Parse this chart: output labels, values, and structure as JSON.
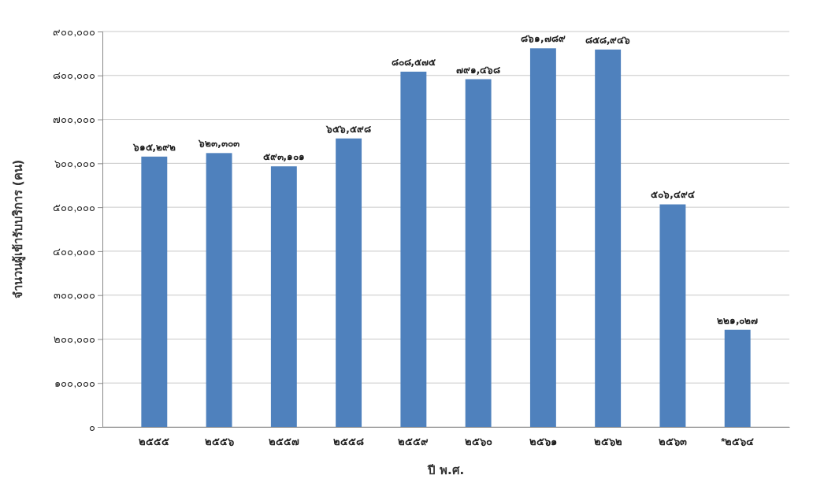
{
  "chart_data": {
    "type": "bar",
    "xlabel": "ปี พ.ศ.",
    "ylabel": "จำนวนผู้เข้ารับบริการ (คน)",
    "categories": [
      "๒๕๕๕",
      "๒๕๕๖",
      "๒๕๕๗",
      "๒๕๕๘",
      "๒๕๕๙",
      "๒๕๖๐",
      "๒๕๖๑",
      "๒๕๖๒",
      "๒๕๖๓",
      "*๒๕๖๔"
    ],
    "values": [
      615292,
      623303,
      593101,
      656598,
      808575,
      791468,
      861789,
      858946,
      506494,
      221027
    ],
    "value_labels": [
      "๖๑๕,๒๙๒",
      "๖๒๓,๓๐๓",
      "๕๙๓,๑๐๑",
      "๖๕๖,๕๙๘",
      "๘๐๘,๕๗๕",
      "๗๙๑,๔๖๘",
      "๘๖๑,๗๘๙",
      "๘๕๘,๙๔๖",
      "๕๐๖,๔๙๔",
      "๒๒๑,๐๒๗"
    ],
    "color": "#4f81bd",
    "ylim": [
      0,
      900000
    ],
    "yticks": [
      {
        "value": 0,
        "label": "๐"
      },
      {
        "value": 100000,
        "label": "๑๐๐,๐๐๐"
      },
      {
        "value": 200000,
        "label": "๒๐๐,๐๐๐"
      },
      {
        "value": 300000,
        "label": "๓๐๐,๐๐๐"
      },
      {
        "value": 400000,
        "label": "๔๐๐,๐๐๐"
      },
      {
        "value": 500000,
        "label": "๕๐๐,๐๐๐"
      },
      {
        "value": 600000,
        "label": "๖๐๐,๐๐๐"
      },
      {
        "value": 700000,
        "label": "๗๐๐,๐๐๐"
      },
      {
        "value": 800000,
        "label": "๘๐๐,๐๐๐"
      },
      {
        "value": 900000,
        "label": "๙๐๐,๐๐๐"
      }
    ],
    "grid": "y"
  }
}
